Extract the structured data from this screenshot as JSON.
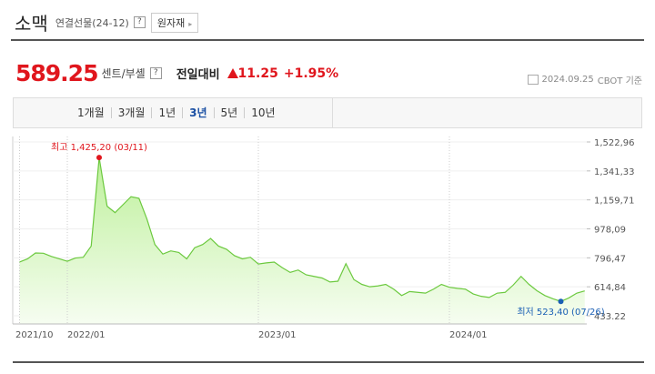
{
  "header": {
    "title": "소맥",
    "subtitle": "연결선물(24-12)",
    "help": "?",
    "button": "원자재"
  },
  "price": {
    "value": 589.25,
    "unit": "센트/부셸",
    "change_label": "전일대비",
    "change": 11.25,
    "change_percent": "+1.95%",
    "date": "2024.09.25",
    "source": "CBOT 기준"
  },
  "tabs": [
    "1개월",
    "3개월",
    "1년",
    "3년",
    "5년",
    "10년"
  ],
  "selected_tab": 3,
  "chart_data": {
    "type": "area",
    "categories": [
      "2021/10",
      null,
      null,
      null,
      null,
      null,
      "2022/01",
      null,
      null,
      null,
      null,
      null,
      null,
      null,
      null,
      null,
      null,
      null,
      null,
      null,
      null,
      null,
      null,
      null,
      null,
      null,
      null,
      null,
      null,
      null,
      "2023/01",
      null,
      null,
      null,
      null,
      null,
      null,
      null,
      null,
      null,
      null,
      null,
      null,
      null,
      null,
      null,
      null,
      null,
      null,
      null,
      null,
      null,
      null,
      null,
      "2024/01",
      null,
      null,
      null,
      null,
      null,
      null,
      null,
      null,
      null,
      null,
      null,
      null,
      null,
      null,
      null,
      null,
      null
    ],
    "values": [
      770,
      790,
      827,
      825,
      805,
      790,
      775,
      795,
      800,
      870,
      1425.2,
      1120,
      1080,
      1130,
      1180,
      1170,
      1040,
      880,
      820,
      840,
      830,
      790,
      860,
      880,
      918,
      870,
      850,
      810,
      790,
      800,
      758,
      765,
      770,
      735,
      705,
      720,
      690,
      680,
      670,
      645,
      650,
      760,
      660,
      630,
      615,
      620,
      630,
      600,
      560,
      585,
      580,
      575,
      600,
      630,
      612,
      605,
      600,
      570,
      555,
      548,
      575,
      580,
      625,
      680,
      630,
      590,
      560,
      540,
      523.4,
      545,
      575,
      589.25
    ],
    "color": "#6cc93f",
    "ylim": [
      433.22,
      1522.96
    ],
    "yticks": [
      433.22,
      {
        "value": 614.84,
        "label": "614,84"
      },
      {
        "value": 796.47,
        "label": "796,47"
      },
      {
        "value": 978.09,
        "label": "978,09"
      },
      {
        "value": 1159.71,
        "label": "1,159,71"
      },
      {
        "value": 1341.33,
        "label": "1,341,33"
      },
      {
        "value": 1522.96,
        "label": "1,522,96"
      }
    ],
    "high": {
      "index": 10,
      "label": "최고 1,425,20 (03/11)",
      "color": "#e0161d"
    },
    "low": {
      "index": 68,
      "label": "최저 523,40 (07/26)",
      "color": "#1a5fb4"
    },
    "grid": true
  }
}
